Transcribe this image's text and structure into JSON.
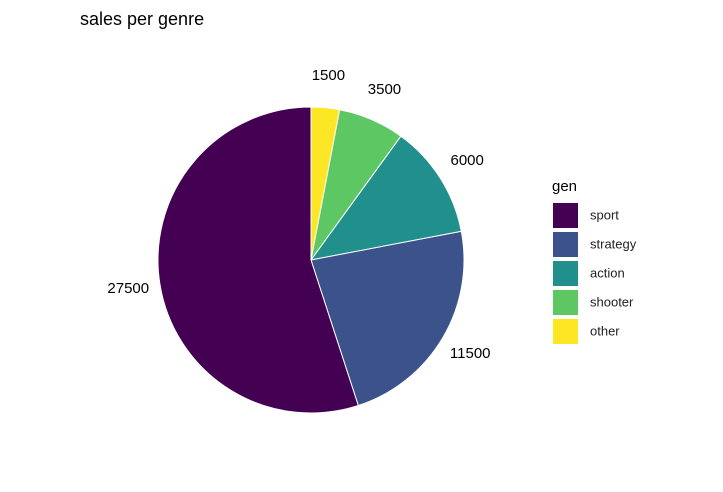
{
  "chart_data": {
    "type": "pie",
    "title": "sales per genre",
    "legend_title": "gen",
    "categories": [
      "sport",
      "strategy",
      "action",
      "shooter",
      "other"
    ],
    "values": [
      27500,
      11500,
      6000,
      3500,
      1500
    ],
    "colors": [
      "#440154",
      "#3B528B",
      "#21908C",
      "#5DC863",
      "#FDE725"
    ]
  }
}
